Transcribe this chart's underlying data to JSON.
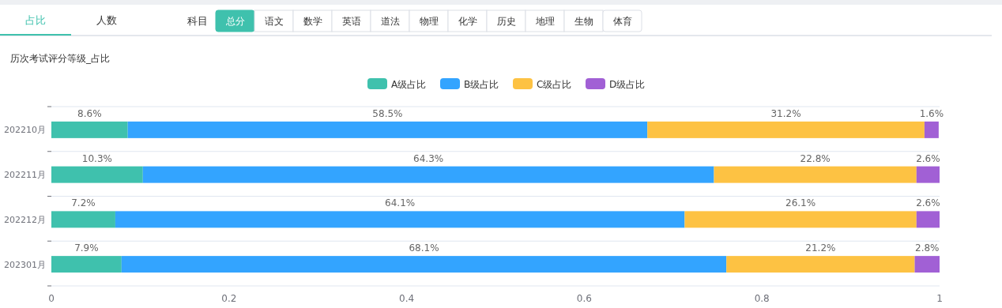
{
  "chart_data": {
    "type": "bar",
    "orientation": "horizontal",
    "stacked": true,
    "title": "历次考试评分等级_占比",
    "annotations": [
      "占比",
      "人数",
      "科目",
      "总分",
      "语文",
      "数学",
      "英语",
      "道法",
      "物理",
      "化学",
      "历史",
      "地理",
      "生物",
      "体育"
    ],
    "categories": [
      "202210月",
      "202211月",
      "202212月",
      "202301月"
    ],
    "series": [
      {
        "name": "A级占比",
        "color": "#3fc1ad",
        "values": [
          0.086,
          0.103,
          0.072,
          0.079
        ],
        "value_labels": [
          "8.6%",
          "10.3%",
          "7.2%",
          "7.9%"
        ]
      },
      {
        "name": "B级占比",
        "color": "#33a4ff",
        "values": [
          0.585,
          0.643,
          0.641,
          0.681
        ],
        "value_labels": [
          "58.5%",
          "64.3%",
          "64.1%",
          "68.1%"
        ]
      },
      {
        "name": "C级占比",
        "color": "#fdc243",
        "values": [
          0.312,
          0.228,
          0.261,
          0.212
        ],
        "value_labels": [
          "31.2%",
          "22.8%",
          "26.1%",
          "21.2%"
        ]
      },
      {
        "name": "D级占比",
        "color": "#a160d5",
        "values": [
          0.016,
          0.026,
          0.026,
          0.028
        ],
        "value_labels": [
          "1.6%",
          "2.6%",
          "2.6%",
          "2.8%"
        ]
      }
    ],
    "xlim": [
      0,
      1
    ],
    "xticks": [
      0,
      0.2,
      0.4,
      0.6,
      0.8,
      1
    ],
    "grid": "y",
    "legend": "top"
  }
}
